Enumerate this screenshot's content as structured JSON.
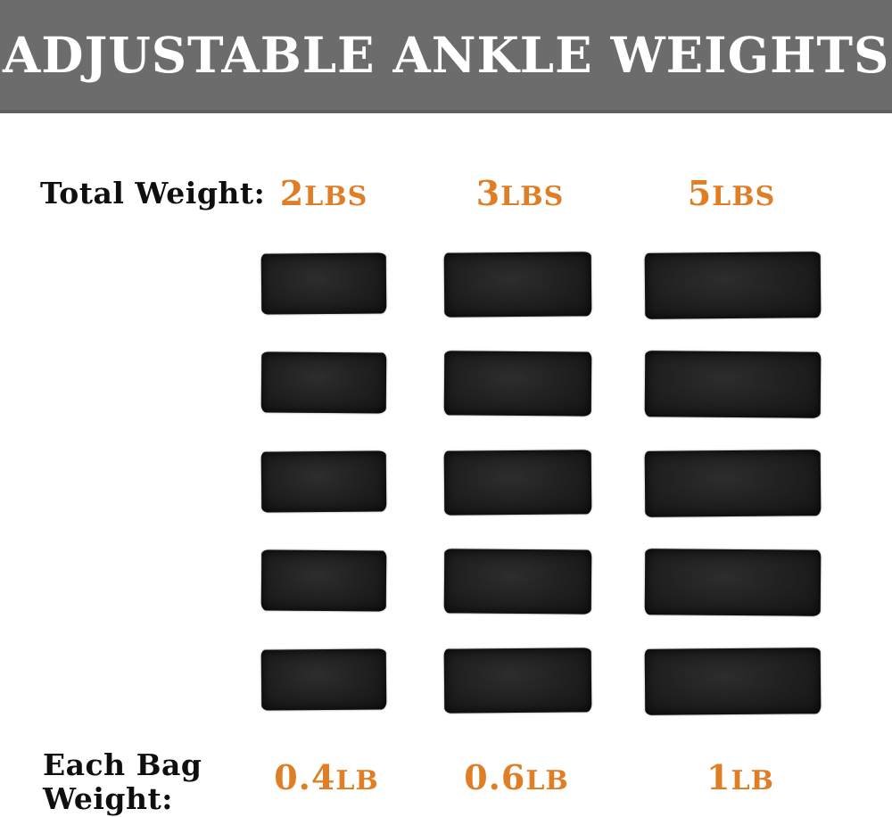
{
  "banner": {
    "title": "ADJUSTABLE ANKLE WEIGHTS",
    "bg_color": "#6C6C6C",
    "text_color": "#FFFFFF"
  },
  "table": {
    "total_weight_label": "Total Weight:",
    "each_bag_label_line1": "Each Bag",
    "each_bag_label_line2": "Weight:",
    "accent_color": "#E07E26",
    "rows_per_column": 5,
    "bag_photo": "black-ankle-weight-sand-bag",
    "columns": [
      {
        "total_num": "2",
        "total_unit": "LBS",
        "bag_num": "0.4",
        "bag_unit": "LB"
      },
      {
        "total_num": "3",
        "total_unit": "LBS",
        "bag_num": "0.6",
        "bag_unit": "LB"
      },
      {
        "total_num": "5",
        "total_unit": "LBS",
        "bag_num": "1",
        "bag_unit": "LB"
      }
    ]
  }
}
